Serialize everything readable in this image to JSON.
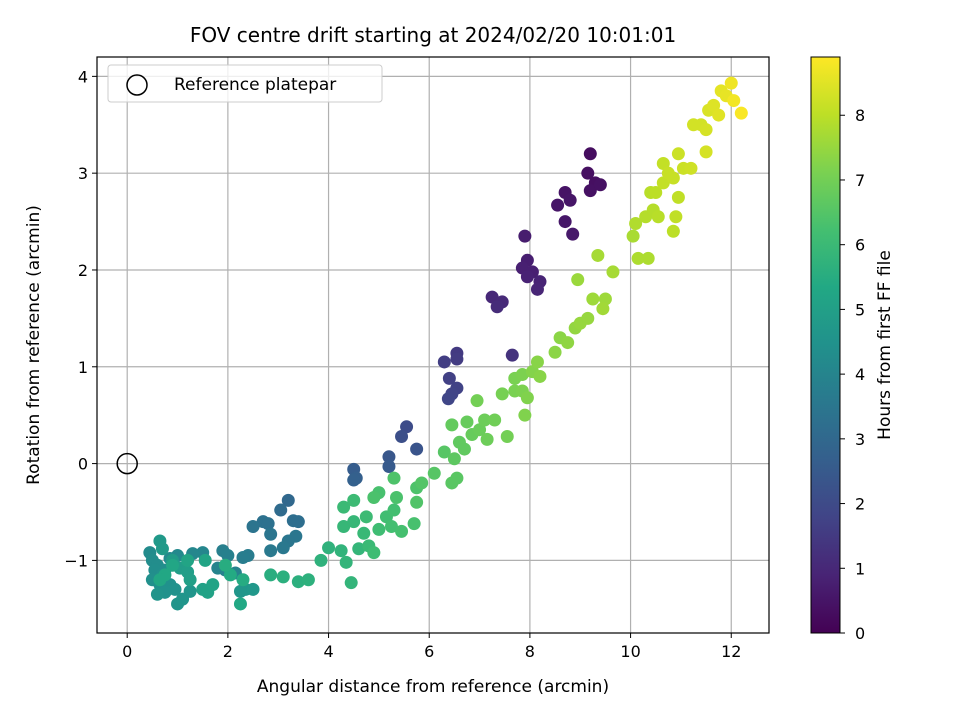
{
  "chart_data": {
    "type": "scatter",
    "title": "FOV centre drift starting at 2024/02/20 10:01:01",
    "xlabel": "Angular distance from reference (arcmin)",
    "ylabel": "Rotation from reference (arcmin)",
    "xlim": [
      -0.6,
      12.75
    ],
    "ylim": [
      -1.75,
      4.2
    ],
    "xticks": [
      0,
      2,
      4,
      6,
      8,
      10,
      12
    ],
    "yticks": [
      -1,
      0,
      1,
      2,
      3,
      4
    ],
    "grid": true,
    "legend": {
      "placement": "top-left",
      "entries": [
        "Reference platepar"
      ]
    },
    "reference_point": {
      "x": 0,
      "y": 0,
      "label": "Reference platepar"
    },
    "colorbar": {
      "label": "Hours from first FF file",
      "colormap": "viridis",
      "range": [
        0,
        8.9
      ],
      "ticks": [
        0,
        1,
        2,
        3,
        4,
        5,
        6,
        7,
        8
      ]
    },
    "points": [
      [
        9.2,
        3.2,
        0.3
      ],
      [
        9.15,
        3.0,
        0.35
      ],
      [
        9.3,
        2.9,
        0.35
      ],
      [
        9.2,
        2.82,
        0.4
      ],
      [
        9.4,
        2.88,
        0.4
      ],
      [
        8.7,
        2.8,
        0.45
      ],
      [
        8.8,
        2.72,
        0.5
      ],
      [
        8.55,
        2.67,
        0.5
      ],
      [
        8.7,
        2.5,
        0.55
      ],
      [
        8.85,
        2.37,
        0.6
      ],
      [
        7.9,
        2.35,
        0.7
      ],
      [
        7.95,
        2.1,
        0.75
      ],
      [
        7.85,
        2.02,
        0.8
      ],
      [
        8.05,
        1.98,
        0.8
      ],
      [
        7.95,
        1.93,
        0.85
      ],
      [
        8.2,
        1.88,
        0.9
      ],
      [
        8.15,
        1.8,
        0.95
      ],
      [
        7.25,
        1.72,
        1.0
      ],
      [
        7.45,
        1.67,
        1.05
      ],
      [
        7.35,
        1.62,
        1.1
      ],
      [
        7.65,
        1.12,
        1.3
      ],
      [
        6.55,
        1.14,
        1.5
      ],
      [
        6.55,
        1.08,
        1.55
      ],
      [
        6.3,
        1.05,
        1.6
      ],
      [
        6.4,
        0.88,
        1.7
      ],
      [
        6.55,
        0.78,
        1.75
      ],
      [
        6.45,
        0.72,
        1.8
      ],
      [
        6.38,
        0.67,
        1.85
      ],
      [
        5.55,
        0.38,
        2.05
      ],
      [
        5.45,
        0.28,
        2.15
      ],
      [
        5.75,
        0.15,
        2.3
      ],
      [
        5.2,
        0.07,
        2.4
      ],
      [
        5.2,
        -0.03,
        2.5
      ],
      [
        4.5,
        -0.06,
        2.6
      ],
      [
        4.55,
        -0.15,
        2.7
      ],
      [
        4.5,
        -0.17,
        2.75
      ],
      [
        3.2,
        -0.38,
        3.0
      ],
      [
        3.05,
        -0.48,
        3.1
      ],
      [
        3.3,
        -0.59,
        3.2
      ],
      [
        3.4,
        -0.6,
        3.2
      ],
      [
        2.7,
        -0.6,
        3.3
      ],
      [
        2.8,
        -0.62,
        3.3
      ],
      [
        2.5,
        -0.65,
        3.4
      ],
      [
        2.85,
        -0.73,
        3.45
      ],
      [
        3.35,
        -0.75,
        3.5
      ],
      [
        3.2,
        -0.8,
        3.5
      ],
      [
        3.1,
        -0.87,
        3.55
      ],
      [
        2.85,
        -0.9,
        3.6
      ],
      [
        2.4,
        -0.95,
        3.7
      ],
      [
        2.3,
        -0.97,
        3.75
      ],
      [
        1.9,
        -0.9,
        3.8
      ],
      [
        2.0,
        -0.95,
        3.85
      ],
      [
        1.95,
        -1.1,
        3.9
      ],
      [
        2.15,
        -1.13,
        3.95
      ],
      [
        1.8,
        -1.08,
        4.0
      ],
      [
        1.5,
        -0.92,
        4.05
      ],
      [
        1.3,
        -0.93,
        4.1
      ],
      [
        1.0,
        -0.95,
        4.15
      ],
      [
        0.85,
        -0.98,
        4.2
      ],
      [
        0.45,
        -0.92,
        4.25
      ],
      [
        0.5,
        -1.0,
        4.3
      ],
      [
        0.6,
        -1.05,
        4.3
      ],
      [
        0.75,
        -1.1,
        4.35
      ],
      [
        0.55,
        -1.1,
        4.35
      ],
      [
        0.7,
        -1.15,
        4.4
      ],
      [
        0.5,
        -1.2,
        4.4
      ],
      [
        0.65,
        -1.25,
        4.45
      ],
      [
        0.85,
        -1.25,
        4.45
      ],
      [
        0.95,
        -1.3,
        4.5
      ],
      [
        0.75,
        -1.33,
        4.5
      ],
      [
        0.6,
        -1.35,
        4.55
      ],
      [
        1.0,
        -1.45,
        4.55
      ],
      [
        1.1,
        -1.4,
        4.6
      ],
      [
        1.25,
        -1.32,
        4.6
      ],
      [
        2.35,
        -1.3,
        4.65
      ],
      [
        2.25,
        -1.32,
        4.65
      ],
      [
        2.5,
        -1.3,
        4.7
      ],
      [
        0.65,
        -0.8,
        4.75
      ],
      [
        0.7,
        -0.88,
        4.8
      ],
      [
        0.9,
        -1.0,
        4.85
      ],
      [
        1.05,
        -1.08,
        4.9
      ],
      [
        1.2,
        -1.12,
        4.95
      ],
      [
        1.25,
        -1.2,
        5.0
      ],
      [
        1.5,
        -1.3,
        5.05
      ],
      [
        1.6,
        -1.33,
        5.1
      ],
      [
        1.7,
        -1.25,
        5.15
      ],
      [
        1.55,
        -1.0,
        5.2
      ],
      [
        1.2,
        -1.0,
        5.2
      ],
      [
        0.9,
        -1.05,
        5.25
      ],
      [
        0.75,
        -1.15,
        5.3
      ],
      [
        0.65,
        -1.2,
        5.3
      ],
      [
        2.25,
        -1.45,
        5.35
      ],
      [
        2.05,
        -1.15,
        5.4
      ],
      [
        2.3,
        -1.2,
        5.45
      ],
      [
        1.95,
        -1.05,
        5.5
      ],
      [
        2.85,
        -1.15,
        5.55
      ],
      [
        3.1,
        -1.17,
        5.6
      ],
      [
        3.4,
        -1.22,
        5.6
      ],
      [
        3.6,
        -1.2,
        5.65
      ],
      [
        3.85,
        -1.0,
        5.7
      ],
      [
        4.0,
        -0.87,
        5.7
      ],
      [
        4.25,
        -0.9,
        5.75
      ],
      [
        4.35,
        -1.02,
        5.8
      ],
      [
        4.45,
        -1.23,
        5.8
      ],
      [
        4.6,
        -0.88,
        5.85
      ],
      [
        4.3,
        -0.65,
        5.9
      ],
      [
        4.5,
        -0.6,
        5.9
      ],
      [
        4.7,
        -0.72,
        5.95
      ],
      [
        4.8,
        -0.85,
        6.0
      ],
      [
        4.3,
        -0.45,
        6.0
      ],
      [
        4.5,
        -0.38,
        6.05
      ],
      [
        4.75,
        -0.55,
        6.05
      ],
      [
        5.0,
        -0.68,
        6.1
      ],
      [
        4.9,
        -0.92,
        6.1
      ],
      [
        5.15,
        -0.55,
        6.15
      ],
      [
        5.3,
        -0.48,
        6.2
      ],
      [
        5.25,
        -0.65,
        6.2
      ],
      [
        5.45,
        -0.7,
        6.25
      ],
      [
        5.7,
        -0.62,
        6.3
      ],
      [
        5.0,
        -0.3,
        6.3
      ],
      [
        4.9,
        -0.35,
        6.35
      ],
      [
        5.35,
        -0.35,
        6.35
      ],
      [
        5.3,
        -0.15,
        6.4
      ],
      [
        5.75,
        -0.25,
        6.4
      ],
      [
        5.75,
        -0.4,
        6.45
      ],
      [
        5.85,
        -0.2,
        6.5
      ],
      [
        6.1,
        -0.1,
        6.55
      ],
      [
        6.3,
        0.12,
        6.55
      ],
      [
        6.45,
        -0.2,
        6.6
      ],
      [
        6.55,
        -0.15,
        6.6
      ],
      [
        6.5,
        0.05,
        6.65
      ],
      [
        6.7,
        0.15,
        6.7
      ],
      [
        6.6,
        0.22,
        6.7
      ],
      [
        6.45,
        0.4,
        6.75
      ],
      [
        6.75,
        0.43,
        6.8
      ],
      [
        6.85,
        0.3,
        6.8
      ],
      [
        7.0,
        0.35,
        6.85
      ],
      [
        7.15,
        0.25,
        6.9
      ],
      [
        7.1,
        0.45,
        6.9
      ],
      [
        7.3,
        0.45,
        6.95
      ],
      [
        7.55,
        0.28,
        7.0
      ],
      [
        6.95,
        0.65,
        7.0
      ],
      [
        7.45,
        0.72,
        7.05
      ],
      [
        7.7,
        0.75,
        7.1
      ],
      [
        7.7,
        0.88,
        7.1
      ],
      [
        7.85,
        0.92,
        7.15
      ],
      [
        7.85,
        0.75,
        7.15
      ],
      [
        7.9,
        0.5,
        7.2
      ],
      [
        7.95,
        0.68,
        7.2
      ],
      [
        8.05,
        0.95,
        7.25
      ],
      [
        8.15,
        1.05,
        7.3
      ],
      [
        8.2,
        0.9,
        7.3
      ],
      [
        8.5,
        1.15,
        7.35
      ],
      [
        8.6,
        1.3,
        7.35
      ],
      [
        8.75,
        1.25,
        7.4
      ],
      [
        8.9,
        1.4,
        7.45
      ],
      [
        9.0,
        1.45,
        7.5
      ],
      [
        9.15,
        1.5,
        7.5
      ],
      [
        8.95,
        1.9,
        7.55
      ],
      [
        9.25,
        1.7,
        7.6
      ],
      [
        9.5,
        1.7,
        7.6
      ],
      [
        9.45,
        1.6,
        7.65
      ],
      [
        9.35,
        2.15,
        7.7
      ],
      [
        9.65,
        1.98,
        7.7
      ],
      [
        10.05,
        2.35,
        7.75
      ],
      [
        10.15,
        2.12,
        7.8
      ],
      [
        10.35,
        2.12,
        7.8
      ],
      [
        10.1,
        2.48,
        7.85
      ],
      [
        10.3,
        2.55,
        7.9
      ],
      [
        10.45,
        2.62,
        7.9
      ],
      [
        10.55,
        2.55,
        7.95
      ],
      [
        10.4,
        2.8,
        7.95
      ],
      [
        10.5,
        2.8,
        8.0
      ],
      [
        10.85,
        2.4,
        8.0
      ],
      [
        10.9,
        2.55,
        8.05
      ],
      [
        10.95,
        2.75,
        8.05
      ],
      [
        10.65,
        2.9,
        8.1
      ],
      [
        10.65,
        3.1,
        8.1
      ],
      [
        10.75,
        3.0,
        8.15
      ],
      [
        10.85,
        2.95,
        8.15
      ],
      [
        10.95,
        3.2,
        8.2
      ],
      [
        11.05,
        3.05,
        8.2
      ],
      [
        11.2,
        3.05,
        8.25
      ],
      [
        11.25,
        3.5,
        8.3
      ],
      [
        11.4,
        3.5,
        8.3
      ],
      [
        11.5,
        3.45,
        8.35
      ],
      [
        11.5,
        3.22,
        8.35
      ],
      [
        11.55,
        3.65,
        8.4
      ],
      [
        11.65,
        3.7,
        8.45
      ],
      [
        11.75,
        3.6,
        8.5
      ],
      [
        11.8,
        3.85,
        8.55
      ],
      [
        11.9,
        3.8,
        8.6
      ],
      [
        12.0,
        3.93,
        8.7
      ],
      [
        12.05,
        3.75,
        8.75
      ],
      [
        12.2,
        3.62,
        8.85
      ]
    ]
  }
}
